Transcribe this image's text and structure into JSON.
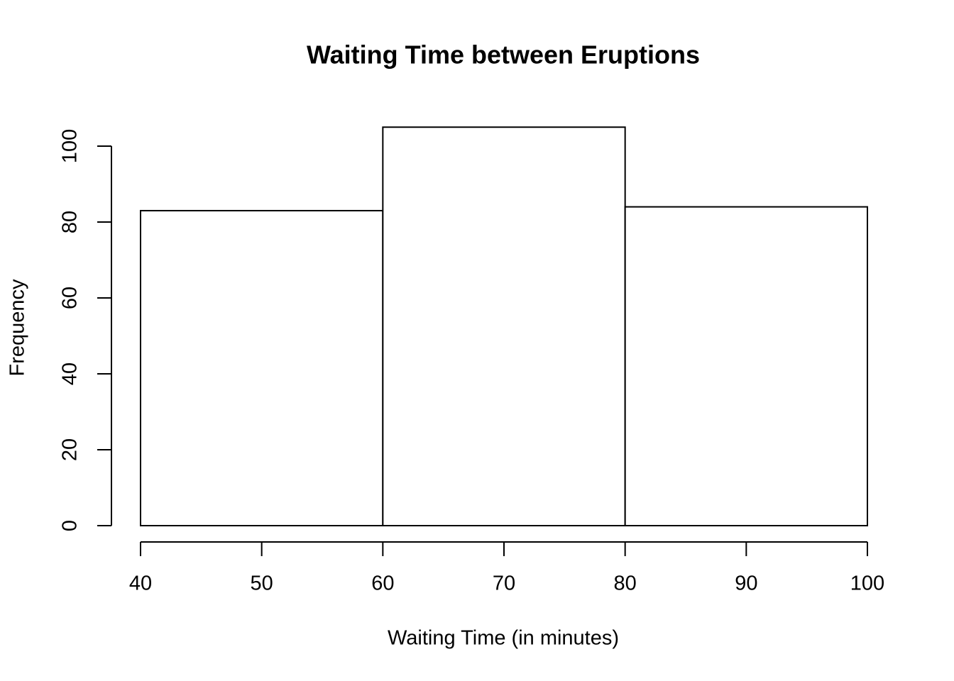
{
  "chart_data": {
    "type": "histogram",
    "title": "Waiting Time between Eruptions",
    "x_label": "Waiting Time (in minutes)",
    "y_label": "Frequency",
    "bins": [
      40,
      60,
      80,
      100
    ],
    "values": [
      83,
      105,
      84
    ],
    "color": "#ffffff",
    "edge_color": "#000000",
    "xlim": [
      40,
      100
    ],
    "xticks": [
      40,
      50,
      60,
      70,
      80,
      90,
      100
    ],
    "ylim": [
      0,
      100
    ],
    "yticks": [
      0,
      20,
      40,
      60,
      80,
      100
    ],
    "grid": false
  }
}
